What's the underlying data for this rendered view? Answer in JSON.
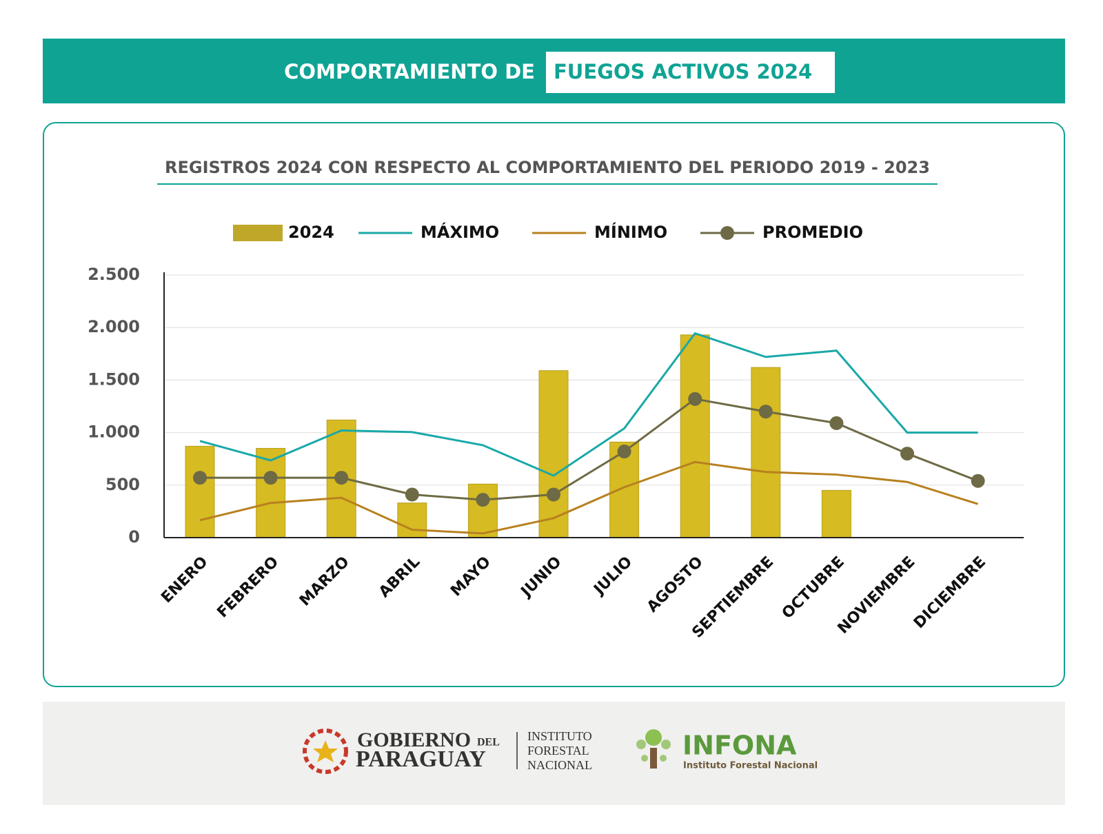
{
  "header": {
    "title_left": "COMPORTAMIENTO DE",
    "title_right": "FUEGOS ACTIVOS 2024"
  },
  "chart_data": {
    "type": "bar_line",
    "title": "REGISTROS 2024 CON RESPECTO AL COMPORTAMIENTO DEL PERIODO 2019 - 2023",
    "categories": [
      "ENERO",
      "FEBRERO",
      "MARZO",
      "ABRIL",
      "MAYO",
      "JUNIO",
      "JULIO",
      "AGOSTO",
      "SEPTIEMBRE",
      "OCTUBRE",
      "NOVIEMBRE",
      "DICIEMBRE"
    ],
    "series": [
      {
        "name": "2024",
        "kind": "bar",
        "color": "#d6bb22",
        "values": [
          870,
          850,
          1120,
          330,
          510,
          1590,
          910,
          1930,
          1620,
          450,
          null,
          null
        ]
      },
      {
        "name": "MÁXIMO",
        "kind": "line",
        "color": "#1aa8a8",
        "values": [
          920,
          735,
          1020,
          1005,
          880,
          590,
          1040,
          1945,
          1720,
          1780,
          1000,
          1000
        ]
      },
      {
        "name": "MÍNIMO",
        "kind": "line",
        "color": "#b8801f",
        "values": [
          165,
          330,
          380,
          75,
          40,
          185,
          480,
          720,
          625,
          600,
          530,
          320
        ]
      },
      {
        "name": "PROMEDIO",
        "kind": "line_marker",
        "color": "#6e6a45",
        "values": [
          570,
          570,
          570,
          410,
          360,
          410,
          820,
          1320,
          1200,
          1090,
          800,
          540
        ]
      }
    ],
    "ylim": [
      0,
      2500
    ],
    "yticks": [
      0,
      500,
      {
        "value": 1000,
        "label": "1.000"
      },
      {
        "value": 1500,
        "label": "1.500"
      },
      {
        "value": 2000,
        "label": "2.000"
      },
      {
        "value": 2500,
        "label": "2.500"
      }
    ],
    "grid": true,
    "legend": "top"
  },
  "footer": {
    "gov_line1": "GOBIERNO",
    "gov_del": "DEL",
    "gov_line2": "PARAGUAY",
    "inst_lines": [
      "INSTITUTO",
      "FORESTAL",
      "NACIONAL"
    ],
    "infona": "INFONA",
    "infona_sub": "Instituto Forestal Nacional"
  }
}
